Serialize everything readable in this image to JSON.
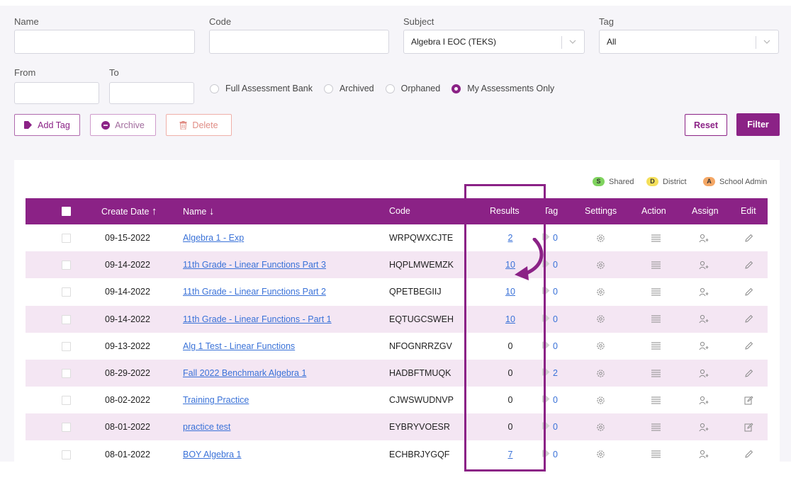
{
  "filters": {
    "name_label": "Name",
    "name_value": "",
    "code_label": "Code",
    "code_value": "",
    "subject_label": "Subject",
    "subject_value": "Algebra I EOC (TEKS)",
    "tag_label": "Tag",
    "tag_value": "All",
    "from_label": "From",
    "from_value": "",
    "to_label": "To",
    "to_value": "",
    "scope_options": [
      {
        "label": "Full Assessment Bank",
        "selected": false
      },
      {
        "label": "Archived",
        "selected": false
      },
      {
        "label": "Orphaned",
        "selected": false
      },
      {
        "label": "My Assessments Only",
        "selected": true
      }
    ]
  },
  "actions": {
    "add_tag": "Add Tag",
    "archive": "Archive",
    "delete": "Delete",
    "reset": "Reset",
    "filter": "Filter"
  },
  "legend": {
    "shared": {
      "letter": "S",
      "label": "Shared",
      "color": "#7fd35e"
    },
    "district": {
      "letter": "D",
      "label": "District",
      "color": "#f4df5a"
    },
    "school_admin": {
      "letter": "A",
      "label": "School Admin",
      "color": "#f4a765"
    }
  },
  "table": {
    "columns": {
      "create_date": "Create Date",
      "create_date_sort": "↑",
      "name": "Name",
      "name_sort": "↓",
      "code": "Code",
      "results": "Results",
      "tag": "Tag",
      "settings": "Settings",
      "action": "Action",
      "assign": "Assign",
      "edit": "Edit"
    },
    "rows": [
      {
        "date": "09-15-2022",
        "name": "Algebra 1 - Exp",
        "code": "WRPQWXCJTE",
        "results": "2",
        "results_link": true,
        "tag": "0",
        "edit_icon": "pencil-icon"
      },
      {
        "date": "09-14-2022",
        "name": "11th Grade - Linear Functions Part 3",
        "code": "HQPLMWEMZK",
        "results": "10",
        "results_link": true,
        "tag": "0",
        "edit_icon": "pencil-icon"
      },
      {
        "date": "09-14-2022",
        "name": "11th Grade - Linear Functions Part 2",
        "code": "QPETBEGIIJ",
        "results": "10",
        "results_link": true,
        "tag": "0",
        "edit_icon": "pencil-icon"
      },
      {
        "date": "09-14-2022",
        "name": "11th Grade - Linear Functions - Part 1",
        "code": "EQTUGCSWEH",
        "results": "10",
        "results_link": true,
        "tag": "0",
        "edit_icon": "pencil-icon"
      },
      {
        "date": "09-13-2022",
        "name": "Alg 1 Test - Linear Functions",
        "code": "NFOGNRRZGV",
        "results": "0",
        "results_link": false,
        "tag": "0",
        "edit_icon": "pencil-icon"
      },
      {
        "date": "08-29-2022",
        "name": "Fall 2022 Benchmark Algebra 1",
        "code": "HADBFTMUQK",
        "results": "0",
        "results_link": false,
        "tag": "2",
        "edit_icon": "pencil-icon"
      },
      {
        "date": "08-02-2022",
        "name": "Training Practice",
        "code": "CJWSWUDNVP",
        "results": "0",
        "results_link": false,
        "tag": "0",
        "edit_icon": "edit-square-icon"
      },
      {
        "date": "08-01-2022",
        "name": "practice test",
        "code": "EYBRYVOESR",
        "results": "0",
        "results_link": false,
        "tag": "0",
        "edit_icon": "edit-square-icon"
      },
      {
        "date": "08-01-2022",
        "name": "BOY Algebra 1",
        "code": "ECHBRJYGQF",
        "results": "7",
        "results_link": true,
        "tag": "0",
        "edit_icon": "pencil-icon"
      }
    ]
  },
  "colors": {
    "brand": "#8b2286",
    "row_alt": "#f4e6f3",
    "link": "#3a72d8"
  }
}
